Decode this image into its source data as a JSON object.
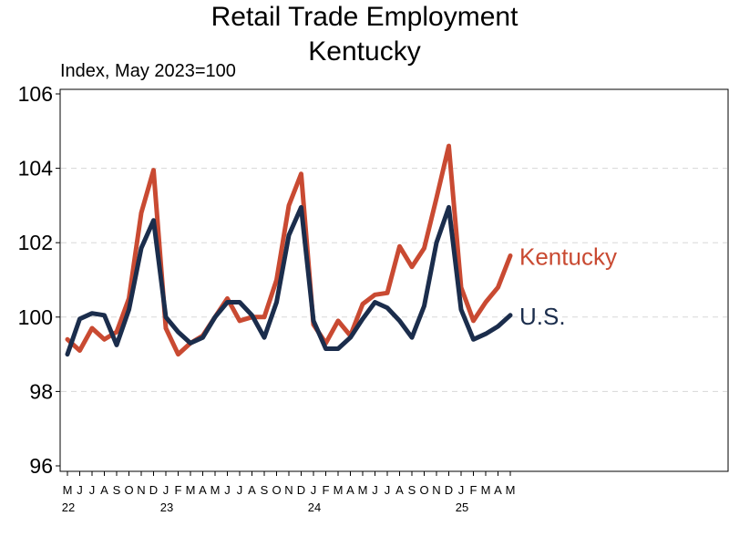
{
  "chart_data": {
    "type": "line",
    "title": [
      "Retail Trade Employment",
      "Kentucky"
    ],
    "ylabel": "Index, May 2023=100",
    "ylim": [
      96,
      106
    ],
    "yticks": [
      96,
      98,
      100,
      102,
      104,
      106
    ],
    "grid": "horizontal dashed",
    "month_labels": [
      "M",
      "J",
      "J",
      "A",
      "S",
      "O",
      "N",
      "D",
      "J",
      "F",
      "M",
      "A",
      "M",
      "J",
      "J",
      "A",
      "S",
      "O",
      "N",
      "D",
      "J",
      "F",
      "M",
      "A",
      "M",
      "J",
      "J",
      "A",
      "S",
      "O",
      "N",
      "D",
      "J",
      "F",
      "M",
      "A",
      "M"
    ],
    "year_labels": [
      {
        "label": "22",
        "month_index": 0
      },
      {
        "label": "23",
        "month_index": 8
      },
      {
        "label": "24",
        "month_index": 20
      },
      {
        "label": "25",
        "month_index": 32
      }
    ],
    "series": [
      {
        "name": "Kentucky",
        "color": "#c94a32",
        "values": [
          99.4,
          99.1,
          99.7,
          99.4,
          99.6,
          100.5,
          102.8,
          103.95,
          99.7,
          99.0,
          99.3,
          99.5,
          100.0,
          100.5,
          99.9,
          100.0,
          100.0,
          101.0,
          103.0,
          103.85,
          99.8,
          99.3,
          99.9,
          99.5,
          100.35,
          100.6,
          100.65,
          101.9,
          101.35,
          101.85,
          103.2,
          104.6,
          100.8,
          99.9,
          100.4,
          100.8,
          101.65
        ]
      },
      {
        "name": "U.S.",
        "color": "#1b2d4c",
        "values": [
          99.0,
          99.95,
          100.1,
          100.05,
          99.25,
          100.2,
          101.85,
          102.6,
          100.0,
          99.6,
          99.3,
          99.45,
          100.0,
          100.4,
          100.4,
          100.05,
          99.45,
          100.4,
          102.2,
          102.95,
          99.9,
          99.15,
          99.15,
          99.45,
          99.95,
          100.4,
          100.25,
          99.9,
          99.45,
          100.3,
          102.0,
          102.95,
          100.2,
          99.4,
          99.55,
          99.75,
          100.05
        ]
      }
    ]
  }
}
